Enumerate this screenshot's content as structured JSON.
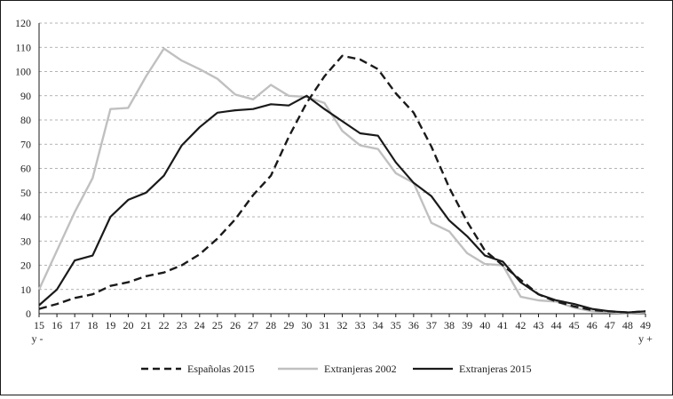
{
  "chart_data": {
    "type": "line",
    "title": "",
    "xlabel": "",
    "ylabel": "",
    "x": [
      15,
      16,
      17,
      18,
      19,
      20,
      21,
      22,
      23,
      24,
      25,
      26,
      27,
      28,
      29,
      30,
      31,
      32,
      33,
      34,
      35,
      36,
      37,
      38,
      39,
      40,
      41,
      42,
      43,
      44,
      45,
      46,
      47,
      48,
      49
    ],
    "x_tick_labels": [
      "15",
      "16",
      "17",
      "18",
      "19",
      "20",
      "21",
      "22",
      "23",
      "24",
      "25",
      "26",
      "27",
      "28",
      "29",
      "30",
      "31",
      "32",
      "33",
      "34",
      "35",
      "36",
      "37",
      "38",
      "39",
      "40",
      "41",
      "42",
      "43",
      "44",
      "45",
      "46",
      "47",
      "48",
      "49"
    ],
    "x_first_sublabel": "y -",
    "x_last_sublabel": "y +",
    "ylim": [
      0,
      120
    ],
    "y_ticks": [
      0,
      10,
      20,
      30,
      40,
      50,
      60,
      70,
      80,
      90,
      100,
      110,
      120
    ],
    "grid": "horizontal dashed",
    "legend_position": "bottom",
    "series": [
      {
        "name": "Españolas 2015",
        "style": "dashed",
        "color": "#1a1a1a",
        "values": [
          2,
          4,
          6.5,
          8,
          11.5,
          13,
          15.5,
          17,
          20,
          24.5,
          31,
          39,
          49,
          57,
          73,
          87,
          98,
          106.5,
          105,
          101,
          91,
          83,
          69,
          52,
          38,
          26,
          20,
          14,
          8,
          5,
          3,
          1.5,
          1,
          0.5,
          1
        ]
      },
      {
        "name": "Extranjeras 2002",
        "style": "solid",
        "color": "#c0c0c0",
        "values": [
          10,
          26,
          42,
          56,
          84.5,
          85,
          98,
          109.5,
          104.5,
          101,
          97,
          90.5,
          88.5,
          94.5,
          90,
          89.5,
          87,
          75.5,
          69.5,
          68,
          58,
          54,
          37.5,
          34,
          25,
          20.5,
          20,
          7,
          5.5,
          5,
          2.5,
          1,
          0.5,
          0.3,
          0.5
        ]
      },
      {
        "name": "Extranjeras 2015",
        "style": "solid",
        "color": "#1a1a1a",
        "values": [
          3.5,
          10,
          22,
          24,
          40,
          47,
          50,
          57,
          69.5,
          77,
          83,
          84,
          84.5,
          86.5,
          86,
          90,
          84.5,
          79.5,
          74.5,
          73.5,
          62.5,
          54,
          48.5,
          38.5,
          32,
          24,
          21.5,
          13,
          8,
          5.5,
          4,
          2,
          1,
          0.5,
          1
        ]
      }
    ]
  }
}
